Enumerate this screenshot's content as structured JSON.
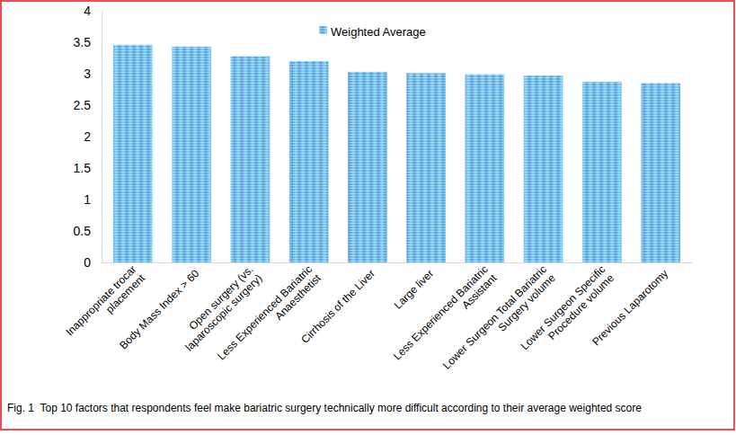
{
  "chart_data": {
    "type": "bar",
    "title": "Fig. 1  Top 10 factors that respondents feel make bariatric surgery technically more difficult according to their average weighted score",
    "categories": [
      "Inappropriate trocar placement",
      "Body Mass Index > 60",
      "Open surgery (vs. laparoscopic surgery)",
      "Less Experienced Bariatric Anaesthetist",
      "Cirrhosis of the Liver",
      "Large liver",
      "Less Experienced Bariatric Assistant",
      "Lower Surgeon Total Bariatric Surgery volume",
      "Lower Surgeon Specific Procedure volume",
      "Previous Laparotomy"
    ],
    "series": [
      {
        "name": "Weighted Average",
        "color": "#5b9bd5",
        "values": [
          3.46,
          3.43,
          3.28,
          3.2,
          3.03,
          3.01,
          2.99,
          2.97,
          2.87,
          2.85
        ]
      }
    ],
    "ylim": [
      0,
      4
    ],
    "yticks": [
      0,
      0.5,
      1,
      1.5,
      2,
      2.5,
      3,
      3.5,
      4
    ],
    "grid": false,
    "legend": "top"
  }
}
